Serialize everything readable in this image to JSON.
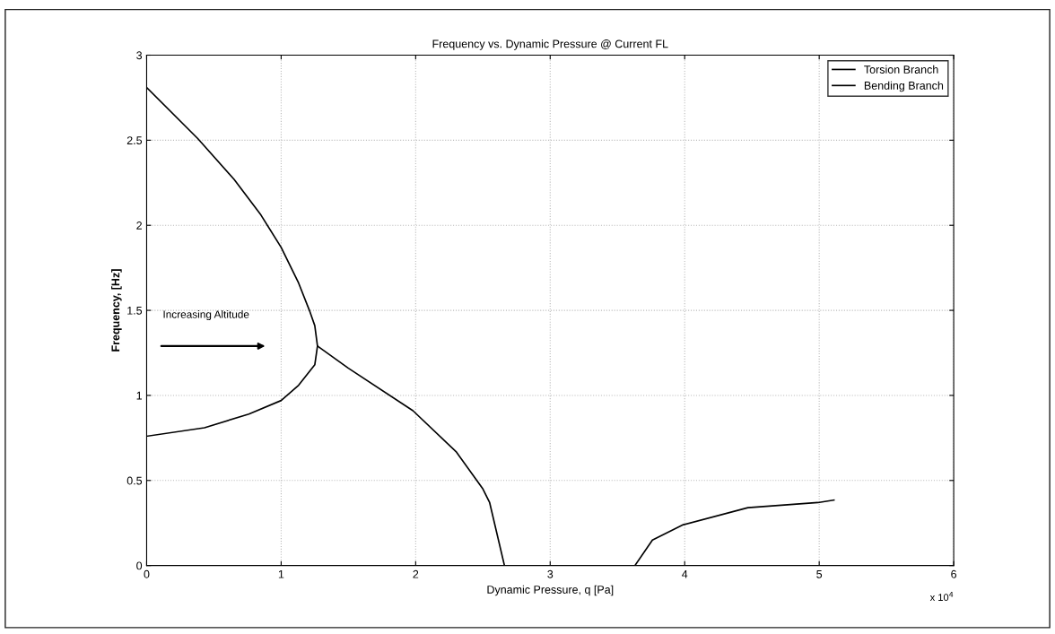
{
  "chart_data": {
    "type": "line",
    "title": "Frequency vs. Dynamic Pressure @ Current FL",
    "xlabel": "Dynamic Pressure, q [Pa]",
    "ylabel": "Frequency, [Hz]",
    "annotations": [
      "Increasing Altitude",
      "x 10$^{4}$"
    ],
    "series": [
      {
        "name": "Torsion Branch",
        "color": "#000000",
        "x": [
          0,
          0.38,
          0.65,
          0.85,
          1.0,
          1.13,
          1.21,
          1.25,
          1.27,
          1.5,
          1.98,
          2.3,
          2.5,
          2.55,
          2.66
        ],
        "values": [
          2.81,
          2.51,
          2.27,
          2.06,
          1.87,
          1.66,
          1.5,
          1.41,
          1.29,
          1.16,
          0.91,
          0.67,
          0.45,
          0.37,
          0
        ]
      },
      {
        "name": "Bending Branch",
        "color": "#000000",
        "x": [
          0,
          0.43,
          0.76,
          1.0,
          1.13,
          1.25,
          1.27,
          null,
          3.63,
          3.76,
          3.99,
          4.47,
          4.99,
          5.11
        ],
        "values": [
          0.76,
          0.81,
          0.89,
          0.97,
          1.06,
          1.18,
          1.29,
          null,
          0,
          0.15,
          0.24,
          0.34,
          0.37,
          0.385
        ]
      }
    ],
    "xlim": [
      0,
      6
    ],
    "xticks": [
      0,
      1,
      2,
      3,
      4,
      5,
      6
    ],
    "ylim": [
      0,
      3
    ],
    "yticks": [
      0,
      0.5,
      1,
      1.5,
      2,
      2.5,
      3
    ],
    "grid": true,
    "legend": "top right",
    "line_style": "solid",
    "marker": "none"
  }
}
